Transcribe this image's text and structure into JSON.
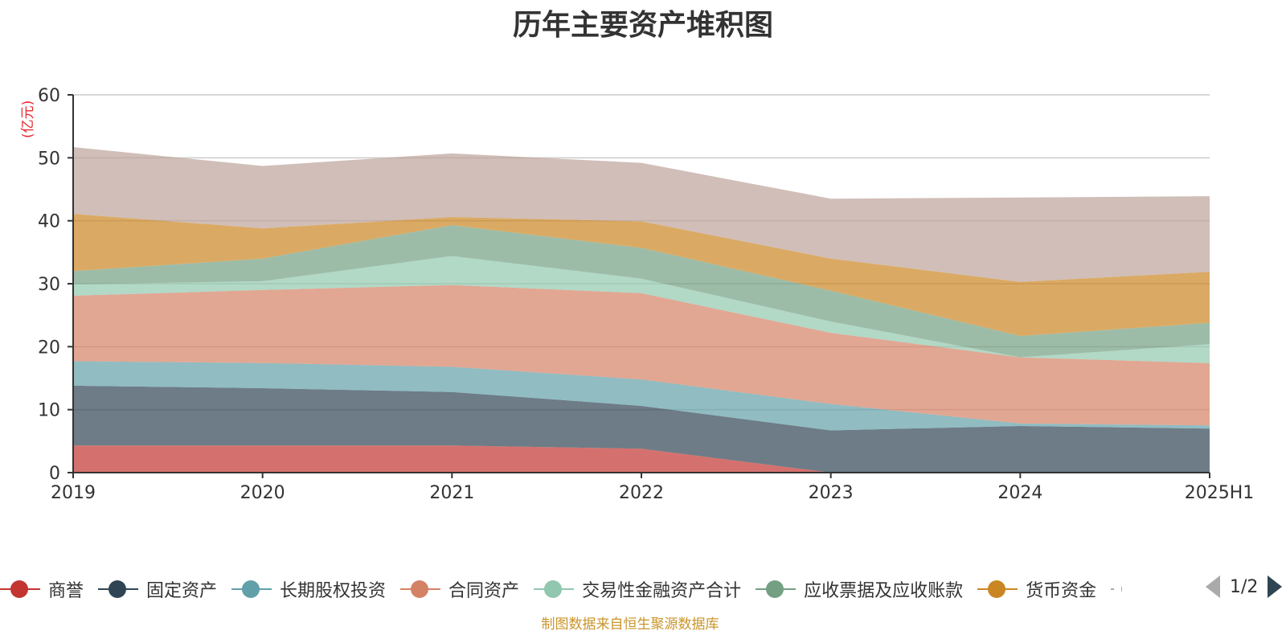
{
  "title": "历年主要资产堆积图",
  "unit_label": "(亿元)",
  "source_text": "制图数据来自恒生聚源数据库",
  "pager": {
    "text": "1/2"
  },
  "legend": [
    {
      "name": "商誉",
      "color": "#c23531"
    },
    {
      "name": "固定资产",
      "color": "#2f4554"
    },
    {
      "name": "长期股权投资",
      "color": "#61a0a8"
    },
    {
      "name": "合同资产",
      "color": "#d48265"
    },
    {
      "name": "交易性金融资产合计",
      "color": "#91c7ae"
    },
    {
      "name": "应收票据及应收账款",
      "color": "#749f83"
    },
    {
      "name": "货币资金",
      "color": "#ca8622"
    },
    {
      "name": "",
      "color": "#bda29a"
    }
  ],
  "chart_data": {
    "type": "area",
    "stacked": true,
    "title": "历年主要资产堆积图",
    "ylabel": "(亿元)",
    "ylim": [
      0,
      60
    ],
    "yticks": [
      0,
      10,
      20,
      30,
      40,
      50,
      60
    ],
    "grid": true,
    "categories": [
      "2019",
      "2020",
      "2021",
      "2022",
      "2023",
      "2024",
      "2025H1"
    ],
    "series": [
      {
        "name": "商誉",
        "color": "#c23531",
        "values": [
          4.3,
          4.3,
          4.3,
          3.8,
          0.0,
          0.0,
          0.0
        ]
      },
      {
        "name": "固定资产",
        "color": "#2f4554",
        "values": [
          9.5,
          9.1,
          8.5,
          6.8,
          6.7,
          7.4,
          7.0
        ]
      },
      {
        "name": "长期股权投资",
        "color": "#61a0a8",
        "values": [
          3.9,
          4.0,
          4.0,
          4.2,
          4.2,
          0.4,
          0.5
        ]
      },
      {
        "name": "合同资产",
        "color": "#d48265",
        "values": [
          10.4,
          11.6,
          13.0,
          13.7,
          11.3,
          10.5,
          9.9
        ]
      },
      {
        "name": "交易性金融资产合计",
        "color": "#91c7ae",
        "values": [
          1.8,
          1.4,
          4.6,
          2.3,
          1.8,
          0.0,
          3.0
        ]
      },
      {
        "name": "应收票据及应收账款",
        "color": "#749f83",
        "values": [
          2.1,
          3.6,
          4.9,
          4.9,
          4.9,
          3.4,
          3.4
        ]
      },
      {
        "name": "货币资金",
        "color": "#ca8622",
        "values": [
          9.1,
          4.8,
          1.3,
          4.2,
          5.1,
          8.6,
          8.1
        ]
      },
      {
        "name": "",
        "color": "#bda29a",
        "values": [
          10.6,
          9.9,
          10.1,
          9.3,
          9.5,
          13.4,
          12.0
        ]
      }
    ]
  }
}
